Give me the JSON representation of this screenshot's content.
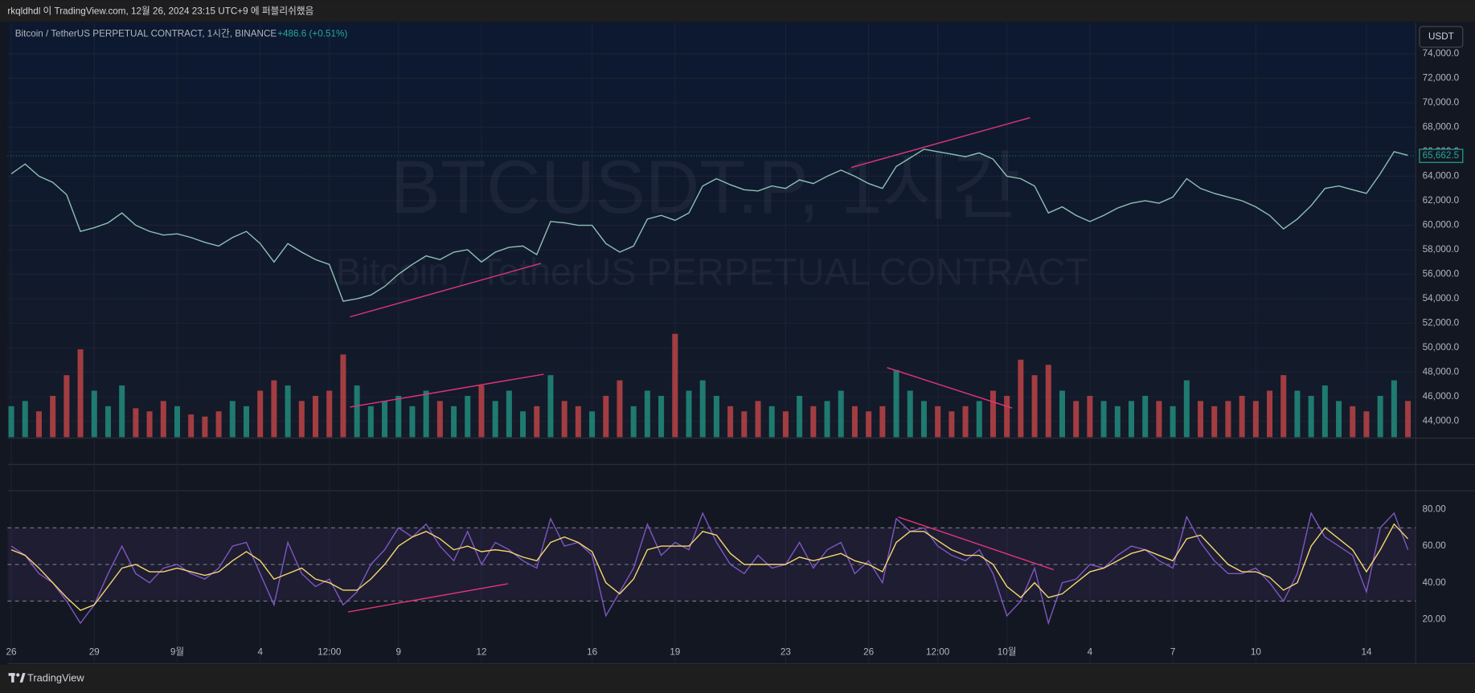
{
  "header": {
    "publish_note": "rkqldhdl 이 TradingView.com, 12월 26, 2024 23:15 UTC+9 에 퍼블리쉬했음"
  },
  "legend": {
    "symbol": "Bitcoin / TetherUS PERPETUAL CONTRACT, 1시간, BINANCE",
    "change": "+486.6 (+0.51%)"
  },
  "currency_button": "USDT",
  "watermark": {
    "line1": "BTCUSDT.P, 1시간",
    "line2": "Bitcoin / TetherUS PERPETUAL CONTRACT"
  },
  "footer": {
    "brand": "TradingView"
  },
  "chart_data": [
    {
      "type": "line",
      "categories": [
        "26",
        null,
        null,
        null,
        null,
        null,
        "29",
        null,
        null,
        null,
        null,
        null,
        "9월",
        null,
        null,
        null,
        null,
        null,
        "4",
        null,
        null,
        null,
        null,
        "12:00",
        null,
        null,
        null,
        null,
        "9",
        null,
        null,
        null,
        null,
        null,
        "12",
        null,
        null,
        null,
        null,
        null,
        null,
        null,
        "16",
        null,
        null,
        null,
        null,
        null,
        "19",
        null,
        null,
        null,
        null,
        null,
        null,
        null,
        "23",
        null,
        null,
        null,
        null,
        null,
        "26",
        null,
        null,
        null,
        null,
        "12:00",
        null,
        null,
        null,
        null,
        "10월",
        null,
        null,
        null,
        null,
        null,
        "4",
        null,
        null,
        null,
        null,
        null,
        "7",
        null,
        null,
        null,
        null,
        null,
        "10",
        null,
        null,
        null,
        null,
        null,
        null,
        null,
        "14",
        null,
        null,
        null
      ],
      "ylim": [
        42700,
        76450
      ],
      "yticks": [
        {
          "value": 44000,
          "label": "44,000.0"
        },
        {
          "value": 46000,
          "label": "46,000.0"
        },
        {
          "value": 48000,
          "label": "48,000.0"
        },
        {
          "value": 50000,
          "label": "50,000.0"
        },
        {
          "value": 52000,
          "label": "52,000.0"
        },
        {
          "value": 54000,
          "label": "54,000.0"
        },
        {
          "value": 56000,
          "label": "56,000.0"
        },
        {
          "value": 58000,
          "label": "58,000.0"
        },
        {
          "value": 60000,
          "label": "60,000.0"
        },
        {
          "value": 62000,
          "label": "62,000.0"
        },
        {
          "value": 64000,
          "label": "64,000.0"
        },
        {
          "value": 66000,
          "label": "66,000.0"
        },
        {
          "value": 68000,
          "label": "68,000.0"
        },
        {
          "value": 70000,
          "label": "70,000.0"
        },
        {
          "value": 72000,
          "label": "72,000.0"
        },
        {
          "value": 74000,
          "label": "74,000.0"
        }
      ],
      "grid": true,
      "last_price": {
        "value": 65662.5,
        "label": "65,662.5"
      },
      "series": [
        {
          "color": "#8fbfb5",
          "values": [
            64200,
            65000,
            64000,
            63500,
            62500,
            59500,
            59800,
            60200,
            61000,
            60000,
            59500,
            59200,
            59300,
            59000,
            58600,
            58300,
            59000,
            59500,
            58500,
            57000,
            58500,
            57800,
            57200,
            56800,
            53800,
            54000,
            54300,
            55000,
            56000,
            56800,
            57500,
            57200,
            57800,
            58000,
            57000,
            57800,
            58200,
            58300,
            57600,
            60300,
            60200,
            60000,
            60000,
            58500,
            57800,
            58300,
            60500,
            60800,
            60400,
            61000,
            63200,
            63800,
            63300,
            62900,
            62800,
            63200,
            63000,
            63700,
            63400,
            64000,
            64500,
            64000,
            63400,
            63000,
            64800,
            65500,
            66200,
            66000,
            65800,
            65600,
            65900,
            65400,
            64000,
            63800,
            63200,
            61000,
            61500,
            60800,
            60300,
            60800,
            61400,
            61800,
            62000,
            61800,
            62300,
            63800,
            63000,
            62600,
            62300,
            62000,
            61500,
            60800,
            59700,
            60500,
            61600,
            63000,
            63200,
            62900,
            62600,
            64200,
            66000,
            65700
          ]
        }
      ]
    },
    {
      "type": "bar",
      "up_color": "#1f7a70",
      "down_color": "#a23d42",
      "values": [
        30,
        35,
        25,
        40,
        60,
        85,
        45,
        30,
        50,
        28,
        25,
        35,
        30,
        22,
        20,
        25,
        35,
        30,
        45,
        55,
        50,
        35,
        40,
        45,
        80,
        50,
        30,
        35,
        40,
        30,
        45,
        35,
        30,
        40,
        50,
        35,
        45,
        25,
        30,
        60,
        35,
        30,
        25,
        40,
        55,
        30,
        45,
        40,
        100,
        45,
        55,
        40,
        30,
        25,
        35,
        30,
        25,
        40,
        30,
        35,
        45,
        30,
        25,
        30,
        65,
        45,
        35,
        30,
        25,
        30,
        35,
        45,
        40,
        75,
        60,
        70,
        45,
        35,
        40,
        35,
        30,
        35,
        40,
        35,
        30,
        55,
        35,
        30,
        35,
        40,
        35,
        45,
        60,
        45,
        40,
        50,
        35,
        30,
        25,
        40,
        55,
        35
      ]
    },
    {
      "type": "line",
      "ylim": [
        -3.6,
        89.7
      ],
      "yticks": [
        {
          "value": 20,
          "label": "20.00"
        },
        {
          "value": 40,
          "label": "40.00"
        },
        {
          "value": 60,
          "label": "60.00"
        },
        {
          "value": 80,
          "label": "80.00"
        }
      ],
      "bands": [
        70,
        50,
        30
      ],
      "band_color": "#7e57c2",
      "series": [
        {
          "color": "#7e57c2",
          "values": [
            60,
            55,
            45,
            40,
            30,
            18,
            28,
            45,
            60,
            45,
            40,
            48,
            50,
            45,
            42,
            48,
            60,
            62,
            45,
            28,
            62,
            45,
            38,
            42,
            28,
            35,
            50,
            58,
            70,
            65,
            72,
            60,
            52,
            68,
            50,
            62,
            58,
            52,
            48,
            75,
            60,
            62,
            55,
            22,
            35,
            48,
            72,
            55,
            62,
            58,
            78,
            62,
            50,
            45,
            55,
            48,
            50,
            62,
            48,
            58,
            62,
            45,
            52,
            40,
            75,
            68,
            70,
            60,
            55,
            52,
            58,
            45,
            22,
            30,
            48,
            18,
            40,
            42,
            50,
            48,
            55,
            60,
            58,
            52,
            48,
            76,
            62,
            52,
            45,
            45,
            48,
            40,
            30,
            45,
            78,
            65,
            60,
            55,
            35,
            70,
            78,
            58
          ]
        },
        {
          "color": "#f5d76e",
          "values": [
            58,
            55,
            48,
            40,
            32,
            25,
            28,
            38,
            48,
            50,
            46,
            46,
            48,
            46,
            44,
            46,
            52,
            57,
            52,
            42,
            45,
            48,
            42,
            40,
            36,
            36,
            42,
            50,
            60,
            65,
            68,
            64,
            58,
            60,
            57,
            58,
            57,
            54,
            52,
            62,
            65,
            62,
            57,
            40,
            34,
            42,
            58,
            60,
            60,
            60,
            68,
            66,
            56,
            50,
            50,
            50,
            50,
            54,
            52,
            54,
            56,
            52,
            50,
            46,
            62,
            68,
            68,
            63,
            58,
            55,
            55,
            50,
            38,
            32,
            40,
            32,
            34,
            40,
            46,
            48,
            52,
            56,
            58,
            55,
            52,
            64,
            66,
            58,
            50,
            46,
            46,
            43,
            36,
            40,
            60,
            70,
            64,
            58,
            46,
            58,
            72,
            64
          ]
        }
      ]
    }
  ]
}
